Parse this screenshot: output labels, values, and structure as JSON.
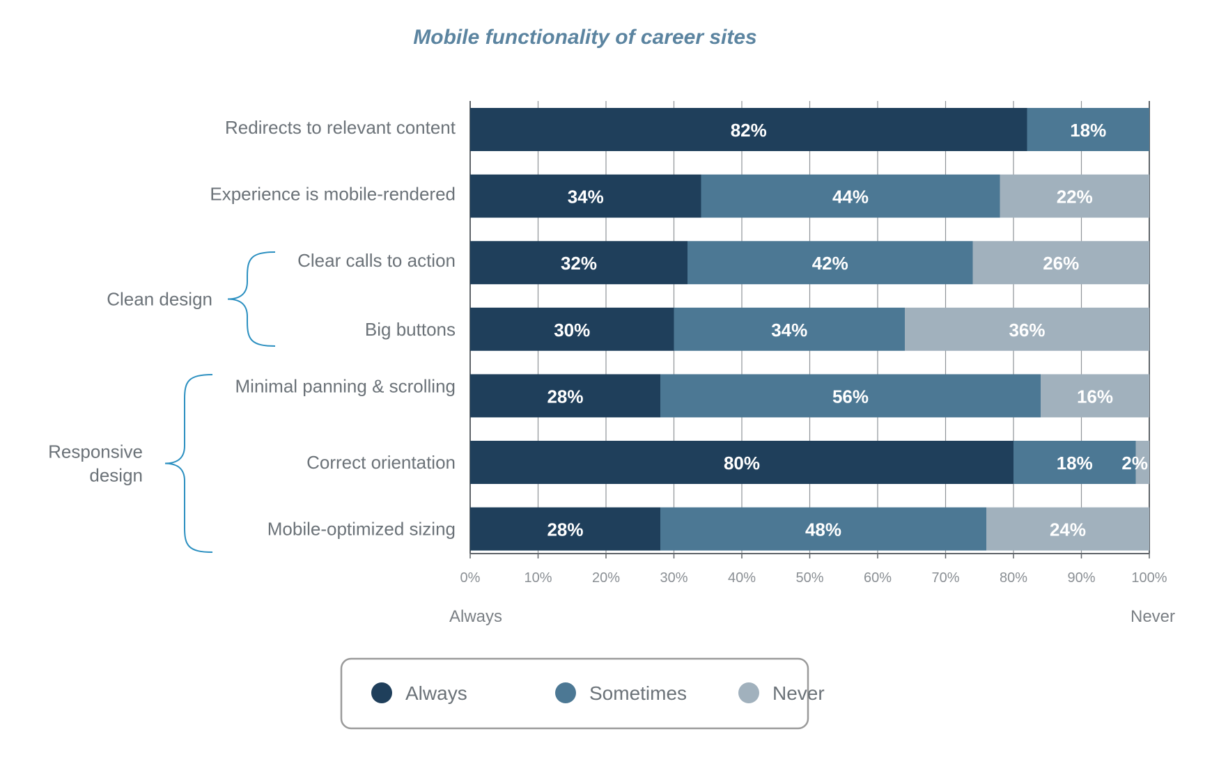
{
  "chart_data": {
    "type": "bar",
    "orientation": "horizontal",
    "stacked": true,
    "title": "Mobile functionality of career sites",
    "categories": [
      "Redirects to relevant content",
      "Experience is mobile-rendered",
      "Clear calls to action",
      "Big buttons",
      "Minimal panning & scrolling",
      "Correct orientation",
      "Mobile-optimized sizing"
    ],
    "series": [
      {
        "name": "Always",
        "values": [
          82,
          34,
          32,
          30,
          28,
          80,
          28
        ]
      },
      {
        "name": "Sometimes",
        "values": [
          18,
          44,
          42,
          34,
          56,
          18,
          48
        ]
      },
      {
        "name": "Never",
        "values": [
          0,
          22,
          26,
          36,
          16,
          2,
          24
        ]
      }
    ],
    "colors": {
      "Always": "#1f3f5b",
      "Sometimes": "#4c7894",
      "Never": "#a1b1bd"
    },
    "xlim": [
      0,
      100
    ],
    "xticks": [
      "0%",
      "10%",
      "20%",
      "30%",
      "40%",
      "50%",
      "60%",
      "70%",
      "80%",
      "90%",
      "100%"
    ],
    "x_end_labels": {
      "left": "Always",
      "right": "Never"
    },
    "groups": [
      {
        "label_lines": [
          "Clean design"
        ],
        "categories": [
          "Clear calls to action",
          "Big buttons"
        ]
      },
      {
        "label_lines": [
          "Responsive",
          "design"
        ],
        "categories": [
          "Minimal panning & scrolling",
          "Correct orientation",
          "Mobile-optimized sizing"
        ]
      }
    ],
    "grid": true,
    "legend_position": "bottom-center"
  }
}
